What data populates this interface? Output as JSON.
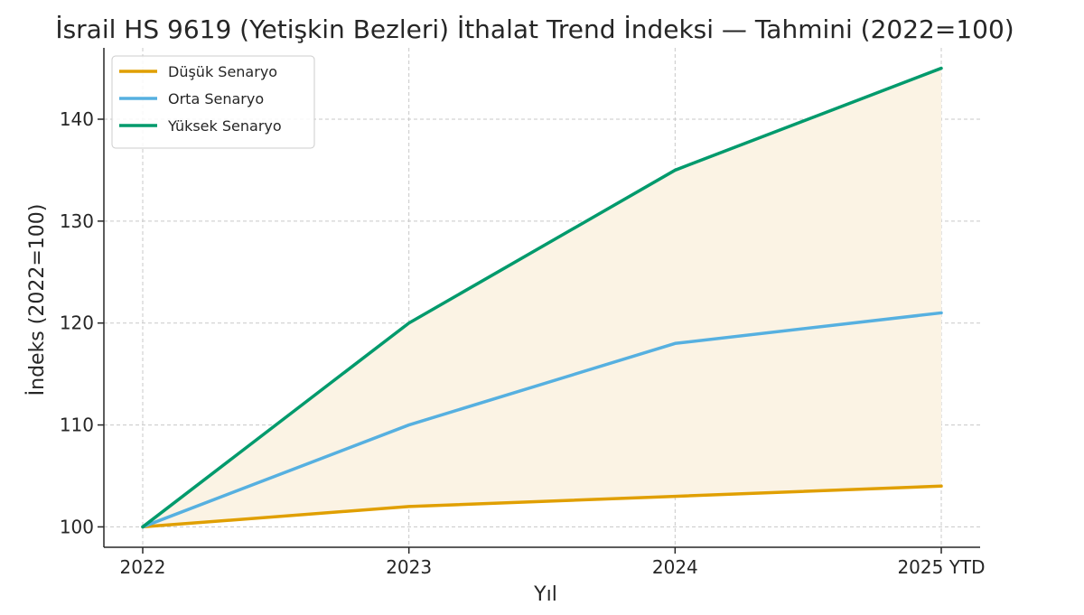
{
  "chart_data": {
    "type": "line",
    "title": "İsrail HS 9619 (Yetişkin Bezleri) İthalat Trend İndeksi — Tahmini (2022=100)",
    "xlabel": "Yıl",
    "ylabel": "İndeks (2022=100)",
    "categories": [
      "2022",
      "2023",
      "2024",
      "2025 YTD"
    ],
    "ylim": [
      98,
      147
    ],
    "yticks": [
      100,
      110,
      120,
      130,
      140
    ],
    "grid": true,
    "legend_position": "top-left",
    "band": {
      "from_series": 0,
      "to_series": 2,
      "color": "#fbf3e4"
    },
    "series": [
      {
        "name": "Düşük Senaryo",
        "values": [
          100,
          102,
          103,
          104
        ],
        "color": "#e09f00"
      },
      {
        "name": "Orta Senaryo",
        "values": [
          100,
          110,
          118,
          121
        ],
        "color": "#56b0e0"
      },
      {
        "name": "Yüksek Senaryo",
        "values": [
          100,
          120,
          135,
          145
        ],
        "color": "#009a6c"
      }
    ]
  }
}
